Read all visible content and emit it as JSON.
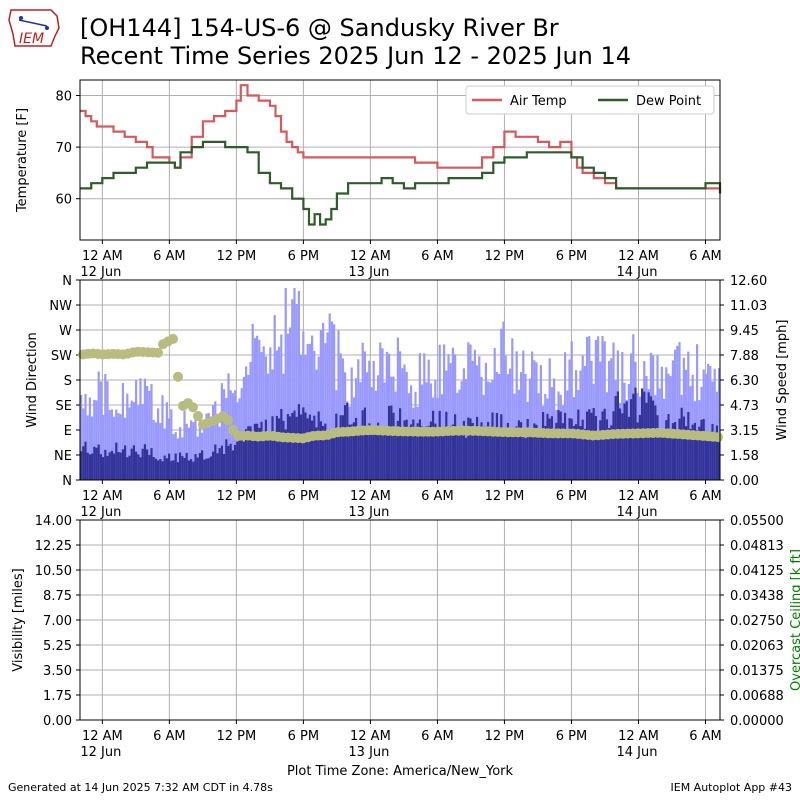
{
  "title": {
    "line1": "[OH144] 154-US-6 @ Sandusky River Br",
    "line2": "Recent Time Series 2025 Jun 12 - 2025 Jun 14"
  },
  "logo_text": "IEM",
  "footer": {
    "left": "Generated at 14 Jun 2025 7:32 AM CDT in 4.78s",
    "right": "IEM Autoplot App #43",
    "timezone": "Plot Time Zone: America/New_York"
  },
  "colors": {
    "air_temp": "#d9595b",
    "dew_point": "#2e5d2a",
    "gust_bar": "#9999ff",
    "speed_bar": "#333399",
    "wind_dir": "#b8bc7e",
    "ceiling_label": "#008000",
    "grid": "#b0b0b0"
  },
  "chart_data": [
    {
      "type": "line",
      "ylabel": "Temperature [F]",
      "ylim": [
        52,
        83
      ],
      "yticks": [
        60,
        70,
        80
      ],
      "grid": true,
      "legend": "top-right",
      "x_hours_from": "2025-06-12 00:00 EDT",
      "xlim_hours": [
        -2,
        55.3
      ],
      "x_ticks": [
        {
          "h": 0,
          "label": "12 AM",
          "date": "12 Jun"
        },
        {
          "h": 6,
          "label": "6 AM",
          "date": ""
        },
        {
          "h": 12,
          "label": "12 PM",
          "date": ""
        },
        {
          "h": 18,
          "label": "6 PM",
          "date": ""
        },
        {
          "h": 24,
          "label": "12 AM",
          "date": "13 Jun"
        },
        {
          "h": 30,
          "label": "6 AM",
          "date": ""
        },
        {
          "h": 36,
          "label": "12 PM",
          "date": ""
        },
        {
          "h": 42,
          "label": "6 PM",
          "date": ""
        },
        {
          "h": 48,
          "label": "12 AM",
          "date": "14 Jun"
        },
        {
          "h": 54,
          "label": "6 AM",
          "date": ""
        }
      ],
      "series": [
        {
          "name": "Air Temp",
          "x": [
            -2,
            -1.5,
            -1,
            -0.5,
            0,
            1,
            2,
            3,
            4,
            4.5,
            6,
            6.5,
            7,
            8,
            9,
            10,
            11,
            12,
            12.4,
            13,
            14,
            15,
            15.5,
            16,
            16.5,
            17,
            17.5,
            18,
            19,
            20,
            21,
            22,
            23,
            24,
            26,
            28,
            30,
            31,
            32,
            33,
            34,
            35,
            36,
            37,
            38,
            39,
            40,
            41,
            42,
            42.5,
            43,
            44,
            45,
            46,
            48,
            50,
            52,
            54,
            55.3
          ],
          "y": [
            77,
            76,
            75,
            74,
            74,
            73,
            72,
            71,
            70,
            68,
            67,
            66,
            68,
            72,
            75,
            76,
            77,
            79,
            82,
            80,
            79,
            78,
            76,
            73,
            71,
            70,
            69,
            68,
            68,
            68,
            68,
            68,
            68,
            68,
            68,
            67,
            66,
            66,
            66,
            66,
            68,
            70,
            73,
            72,
            72,
            71,
            70,
            71,
            68,
            66,
            65,
            64,
            63,
            62,
            62,
            62,
            62,
            62,
            61
          ]
        },
        {
          "name": "Dew Point",
          "x": [
            -2,
            -1,
            0,
            1,
            2,
            3,
            4,
            5,
            6,
            6.5,
            7,
            8,
            9,
            10,
            11,
            12,
            13,
            14,
            15,
            16,
            17,
            18,
            18.5,
            19,
            19.5,
            20,
            20.5,
            21,
            22,
            23,
            24,
            25,
            26,
            27,
            28,
            30,
            31,
            32,
            33,
            34,
            35,
            36,
            38,
            40,
            42,
            43,
            44,
            45,
            46,
            48,
            50,
            52,
            54,
            55.3
          ],
          "y": [
            62,
            63,
            64,
            65,
            65,
            66,
            67,
            67,
            67,
            66,
            69,
            70,
            71,
            71,
            70,
            70,
            69,
            65,
            63,
            62,
            60,
            58,
            55,
            57,
            55,
            56,
            58,
            61,
            63,
            63,
            63,
            64,
            63,
            62,
            63,
            63,
            64,
            64,
            64,
            65,
            67,
            68,
            69,
            69,
            68,
            66,
            65,
            64,
            62,
            62,
            62,
            62,
            63,
            61
          ]
        }
      ]
    },
    {
      "type": "bar",
      "ylabel": "Wind Direction",
      "y2label": "Wind Speed [mph]",
      "direction_ticks": [
        "N",
        "NE",
        "E",
        "SE",
        "S",
        "SW",
        "W",
        "NW",
        "N"
      ],
      "speed_ticks": [
        "0.00",
        "1.58",
        "3.15",
        "4.73",
        "6.30",
        "7.88",
        "9.45",
        "11.03",
        "12.60"
      ],
      "speed_lim": [
        0,
        12.6
      ],
      "dir_lim": [
        0,
        360
      ],
      "grid": true,
      "x_hours_from": "2025-06-12 00:00 EDT",
      "xlim_hours": [
        -2,
        55.3
      ],
      "gust": {
        "x": [
          -2,
          0,
          2,
          4,
          5,
          6,
          8,
          10,
          12,
          13,
          14,
          16,
          17,
          18,
          19,
          20,
          22,
          24,
          26,
          28,
          30,
          32,
          34,
          36,
          38,
          40,
          42,
          44,
          46,
          48,
          50,
          52,
          54,
          55.3
        ],
        "y": [
          4.7,
          5.5,
          5.6,
          4.9,
          4.4,
          3.8,
          3.5,
          4.0,
          6.5,
          8.3,
          7.2,
          9.0,
          11.0,
          9.5,
          8.0,
          8.7,
          6.6,
          6.8,
          7.4,
          6.2,
          7.0,
          7.2,
          6.8,
          7.9,
          6.6,
          6.1,
          6.8,
          7.4,
          6.7,
          7.3,
          6.4,
          6.8,
          6.5,
          5.7
        ]
      },
      "speed": {
        "x": [
          -2,
          0,
          2,
          4,
          6,
          8,
          10,
          12,
          14,
          16,
          18,
          20,
          22,
          24,
          26,
          28,
          30,
          32,
          34,
          36,
          38,
          40,
          42,
          44,
          46,
          48,
          50,
          52,
          54,
          55.3
        ],
        "y": [
          2.0,
          1.9,
          1.9,
          1.8,
          1.4,
          1.5,
          1.9,
          2.4,
          3.2,
          3.9,
          4.2,
          3.5,
          4.0,
          3.6,
          3.8,
          3.6,
          3.7,
          3.4,
          3.2,
          3.8,
          3.4,
          3.5,
          3.6,
          3.7,
          4.6,
          4.7,
          4.1,
          3.6,
          3.1,
          2.7
        ]
      },
      "direction": {
        "x": [
          -2,
          -1,
          0,
          1,
          2,
          3,
          4,
          5,
          5.5,
          6,
          6.5,
          7,
          7.5,
          8,
          9,
          10,
          11,
          12,
          13,
          14,
          15,
          16,
          17,
          18,
          19,
          20,
          21,
          22,
          24,
          26,
          28,
          30,
          32,
          34,
          36,
          38,
          40,
          42,
          44,
          46,
          48,
          50,
          52,
          54,
          55.3
        ],
        "y": [
          225,
          228,
          226,
          227,
          226,
          231,
          230,
          229,
          247,
          250,
          256,
          128,
          140,
          135,
          100,
          107,
          117,
          79,
          80,
          78,
          80,
          77,
          76,
          75,
          80,
          80,
          86,
          87,
          90,
          88,
          87,
          87,
          89,
          88,
          86,
          86,
          84,
          84,
          80,
          83,
          84,
          85,
          82,
          79,
          77
        ]
      }
    },
    {
      "type": "line",
      "ylabel": "Visibility [miles]",
      "y2label": "Overcast Ceiling [k ft]",
      "vis_ticks": [
        "0.00",
        "1.75",
        "3.50",
        "5.25",
        "7.00",
        "8.75",
        "10.50",
        "12.25",
        "14.00"
      ],
      "ceiling_ticks": [
        "0.00000",
        "0.00688",
        "0.01375",
        "0.02063",
        "0.02750",
        "0.03438",
        "0.04125",
        "0.04813",
        "0.05500"
      ],
      "vis_lim": [
        0,
        14
      ],
      "ceiling_lim": [
        0,
        0.055
      ],
      "grid": true,
      "x_hours_from": "2025-06-12 00:00 EDT",
      "xlim_hours": [
        -2,
        55.3
      ],
      "series": []
    }
  ]
}
